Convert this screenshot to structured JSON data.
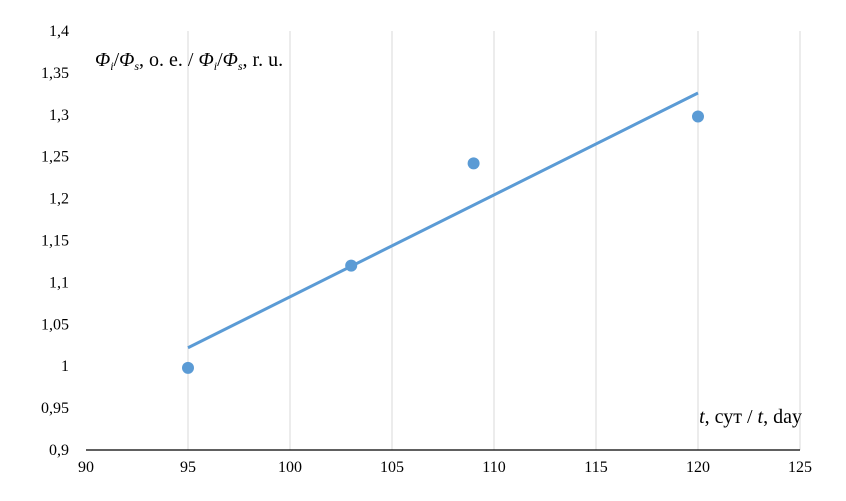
{
  "chart_data": {
    "type": "scatter",
    "title": "",
    "ylabel": {
      "sym1": "Φ",
      "sub1": "i",
      "slash": "/",
      "sym2": "Φ",
      "sub2": "s",
      "text1": ", о. е. / ",
      "sym3": "Φ",
      "sub3": "i",
      "slash2": "/",
      "sym4": "Φ",
      "sub4": "s",
      "text2": ", r. u."
    },
    "xlabel": {
      "var1": "t",
      "text1": ", сут / ",
      "var2": "t",
      "text2": ", day"
    },
    "xlim": [
      90,
      125
    ],
    "ylim": [
      0.9,
      1.4
    ],
    "x_ticks": [
      90,
      95,
      100,
      105,
      110,
      115,
      120,
      125
    ],
    "x_tick_labels": [
      "90",
      "95",
      "100",
      "105",
      "110",
      "115",
      "120",
      "125"
    ],
    "y_ticks": [
      0.9,
      0.95,
      1.0,
      1.05,
      1.1,
      1.15,
      1.2,
      1.25,
      1.3,
      1.35,
      1.4
    ],
    "y_tick_labels": [
      "0,9",
      "0,95",
      "1",
      "1,05",
      "1,1",
      "1,15",
      "1,2",
      "1,25",
      "1,3",
      "1,35",
      "1,4"
    ],
    "grid": "vertical",
    "series": [
      {
        "x": [
          95,
          103,
          109,
          120
        ],
        "y": [
          0.998,
          1.12,
          1.242,
          1.298
        ],
        "color": "#5b9bd5"
      }
    ],
    "trendline": {
      "x": [
        95,
        120
      ],
      "y": [
        1.022,
        1.326
      ],
      "color": "#5b9bd5"
    }
  }
}
